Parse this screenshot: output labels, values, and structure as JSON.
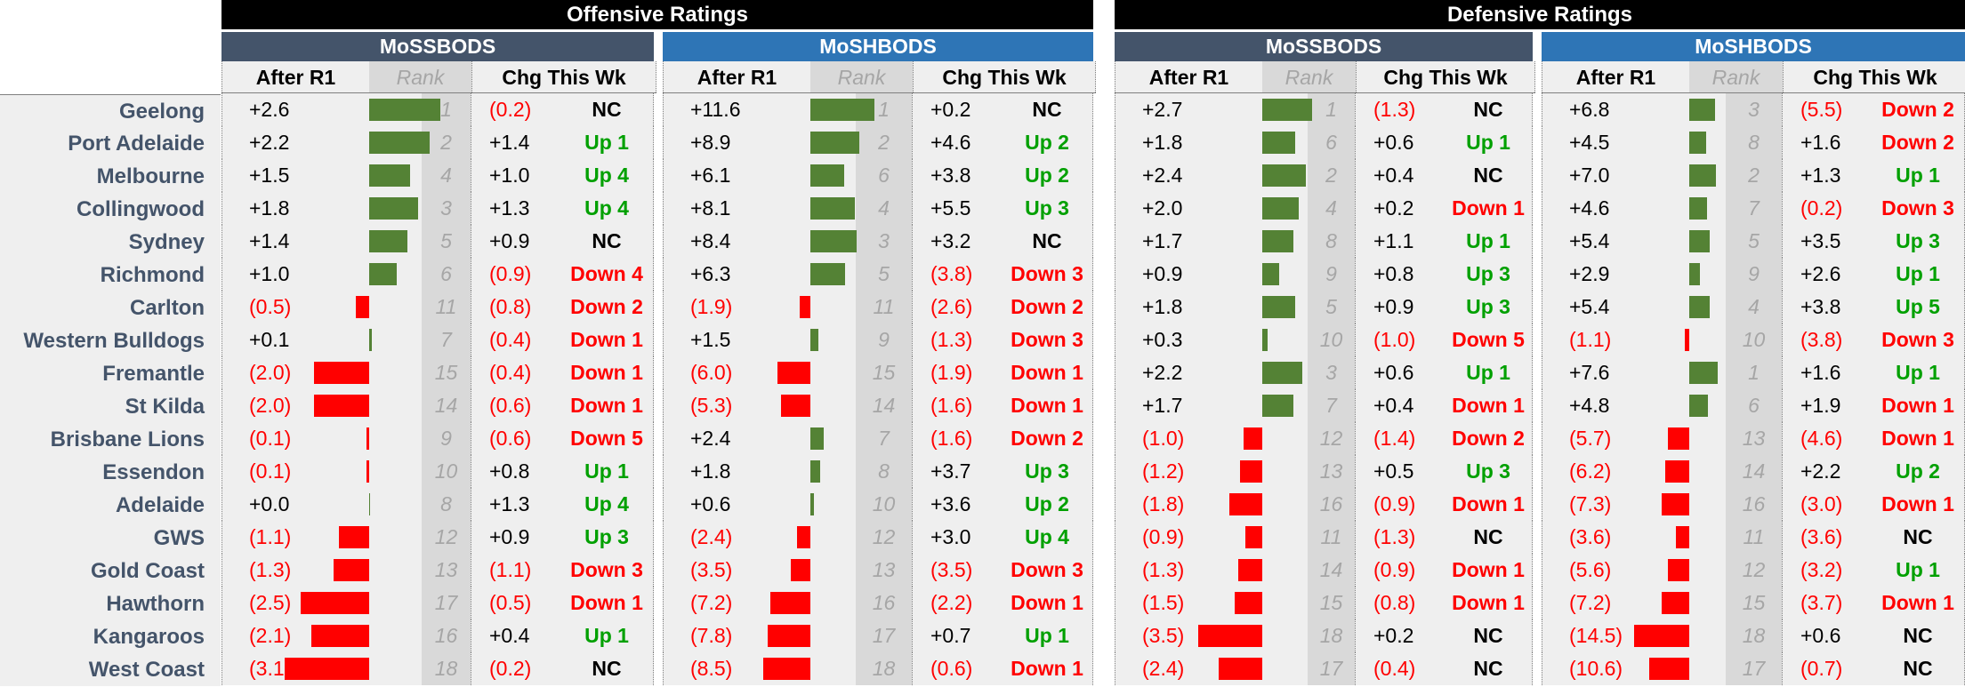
{
  "groups": [
    {
      "title": "Offensive Ratings"
    },
    {
      "title": "Defensive Ratings"
    }
  ],
  "subheaders": {
    "mossbods": "MoSSBODS",
    "moshbods": "MoSHBODS"
  },
  "columns": {
    "after": "After R1",
    "rank": "Rank",
    "chg": "Chg This Wk"
  },
  "teams": [
    "Geelong",
    "Port Adelaide",
    "Melbourne",
    "Collingwood",
    "Sydney",
    "Richmond",
    "Carlton",
    "Western Bulldogs",
    "Fremantle",
    "St Kilda",
    "Brisbane Lions",
    "Essendon",
    "Adelaide",
    "GWS",
    "Gold Coast",
    "Hawthorn",
    "Kangaroos",
    "West Coast"
  ],
  "panels": [
    {
      "name": "off-mossbods",
      "scale": 2.6,
      "rows": [
        {
          "v": "+2.6",
          "n": 2.6,
          "rank": "1",
          "c": "(0.2)",
          "t": "NC"
        },
        {
          "v": "+2.2",
          "n": 2.2,
          "rank": "2",
          "c": "+1.4",
          "t": "Up 1"
        },
        {
          "v": "+1.5",
          "n": 1.5,
          "rank": "4",
          "c": "+1.0",
          "t": "Up 4"
        },
        {
          "v": "+1.8",
          "n": 1.8,
          "rank": "3",
          "c": "+1.3",
          "t": "Up 4"
        },
        {
          "v": "+1.4",
          "n": 1.4,
          "rank": "5",
          "c": "+0.9",
          "t": "NC"
        },
        {
          "v": "+1.0",
          "n": 1.0,
          "rank": "6",
          "c": "(0.9)",
          "t": "Down 4"
        },
        {
          "v": "(0.5)",
          "n": -0.5,
          "rank": "11",
          "c": "(0.8)",
          "t": "Down 2"
        },
        {
          "v": "+0.1",
          "n": 0.1,
          "rank": "7",
          "c": "(0.4)",
          "t": "Down 1"
        },
        {
          "v": "(2.0)",
          "n": -2.0,
          "rank": "15",
          "c": "(0.4)",
          "t": "Down 1"
        },
        {
          "v": "(2.0)",
          "n": -2.0,
          "rank": "14",
          "c": "(0.6)",
          "t": "Down 1"
        },
        {
          "v": "(0.1)",
          "n": -0.1,
          "rank": "9",
          "c": "(0.6)",
          "t": "Down 5"
        },
        {
          "v": "(0.1)",
          "n": -0.1,
          "rank": "10",
          "c": "+0.8",
          "t": "Up 1"
        },
        {
          "v": "+0.0",
          "n": 0.0,
          "rank": "8",
          "c": "+1.3",
          "t": "Up 4"
        },
        {
          "v": "(1.1)",
          "n": -1.1,
          "rank": "12",
          "c": "+0.9",
          "t": "Up 3"
        },
        {
          "v": "(1.3)",
          "n": -1.3,
          "rank": "13",
          "c": "(1.1)",
          "t": "Down 3"
        },
        {
          "v": "(2.5)",
          "n": -2.5,
          "rank": "17",
          "c": "(0.5)",
          "t": "Down 1"
        },
        {
          "v": "(2.1)",
          "n": -2.1,
          "rank": "16",
          "c": "+0.4",
          "t": "Up 1"
        },
        {
          "v": "(3.1)",
          "n": -3.1,
          "rank": "18",
          "c": "(0.2)",
          "t": "NC"
        }
      ]
    },
    {
      "name": "off-moshbods",
      "scale": 11.6,
      "rows": [
        {
          "v": "+11.6",
          "n": 11.6,
          "rank": "1",
          "c": "+0.2",
          "t": "NC"
        },
        {
          "v": "+8.9",
          "n": 8.9,
          "rank": "2",
          "c": "+4.6",
          "t": "Up 2"
        },
        {
          "v": "+6.1",
          "n": 6.1,
          "rank": "6",
          "c": "+3.8",
          "t": "Up 2"
        },
        {
          "v": "+8.1",
          "n": 8.1,
          "rank": "4",
          "c": "+5.5",
          "t": "Up 3"
        },
        {
          "v": "+8.4",
          "n": 8.4,
          "rank": "3",
          "c": "+3.2",
          "t": "NC"
        },
        {
          "v": "+6.3",
          "n": 6.3,
          "rank": "5",
          "c": "(3.8)",
          "t": "Down 3"
        },
        {
          "v": "(1.9)",
          "n": -1.9,
          "rank": "11",
          "c": "(2.6)",
          "t": "Down 2"
        },
        {
          "v": "+1.5",
          "n": 1.5,
          "rank": "9",
          "c": "(1.3)",
          "t": "Down 3"
        },
        {
          "v": "(6.0)",
          "n": -6.0,
          "rank": "15",
          "c": "(1.9)",
          "t": "Down 1"
        },
        {
          "v": "(5.3)",
          "n": -5.3,
          "rank": "14",
          "c": "(1.6)",
          "t": "Down 1"
        },
        {
          "v": "+2.4",
          "n": 2.4,
          "rank": "7",
          "c": "(1.6)",
          "t": "Down 2"
        },
        {
          "v": "+1.8",
          "n": 1.8,
          "rank": "8",
          "c": "+3.7",
          "t": "Up 3"
        },
        {
          "v": "+0.6",
          "n": 0.6,
          "rank": "10",
          "c": "+3.6",
          "t": "Up 2"
        },
        {
          "v": "(2.4)",
          "n": -2.4,
          "rank": "12",
          "c": "+3.0",
          "t": "Up 4"
        },
        {
          "v": "(3.5)",
          "n": -3.5,
          "rank": "13",
          "c": "(3.5)",
          "t": "Down 3"
        },
        {
          "v": "(7.2)",
          "n": -7.2,
          "rank": "16",
          "c": "(2.2)",
          "t": "Down 1"
        },
        {
          "v": "(7.8)",
          "n": -7.8,
          "rank": "17",
          "c": "+0.7",
          "t": "Up 1"
        },
        {
          "v": "(8.5)",
          "n": -8.5,
          "rank": "18",
          "c": "(0.6)",
          "t": "Down 1"
        }
      ]
    },
    {
      "name": "def-mossbods",
      "scale": 3.5,
      "rows": [
        {
          "v": "+2.7",
          "n": 2.7,
          "rank": "1",
          "c": "(1.3)",
          "t": "NC"
        },
        {
          "v": "+1.8",
          "n": 1.8,
          "rank": "6",
          "c": "+0.6",
          "t": "Up 1"
        },
        {
          "v": "+2.4",
          "n": 2.4,
          "rank": "2",
          "c": "+0.4",
          "t": "NC"
        },
        {
          "v": "+2.0",
          "n": 2.0,
          "rank": "4",
          "c": "+0.2",
          "t": "Down 1"
        },
        {
          "v": "+1.7",
          "n": 1.7,
          "rank": "8",
          "c": "+1.1",
          "t": "Up 1"
        },
        {
          "v": "+0.9",
          "n": 0.9,
          "rank": "9",
          "c": "+0.8",
          "t": "Up 3"
        },
        {
          "v": "+1.8",
          "n": 1.8,
          "rank": "5",
          "c": "+0.9",
          "t": "Up 3"
        },
        {
          "v": "+0.3",
          "n": 0.3,
          "rank": "10",
          "c": "(1.0)",
          "t": "Down 5"
        },
        {
          "v": "+2.2",
          "n": 2.2,
          "rank": "3",
          "c": "+0.6",
          "t": "Up 1"
        },
        {
          "v": "+1.7",
          "n": 1.7,
          "rank": "7",
          "c": "+0.4",
          "t": "Down 1"
        },
        {
          "v": "(1.0)",
          "n": -1.0,
          "rank": "12",
          "c": "(1.4)",
          "t": "Down 2"
        },
        {
          "v": "(1.2)",
          "n": -1.2,
          "rank": "13",
          "c": "+0.5",
          "t": "Up 3"
        },
        {
          "v": "(1.8)",
          "n": -1.8,
          "rank": "16",
          "c": "(0.9)",
          "t": "Down 1"
        },
        {
          "v": "(0.9)",
          "n": -0.9,
          "rank": "11",
          "c": "(1.3)",
          "t": "NC"
        },
        {
          "v": "(1.3)",
          "n": -1.3,
          "rank": "14",
          "c": "(0.9)",
          "t": "Down 1"
        },
        {
          "v": "(1.5)",
          "n": -1.5,
          "rank": "15",
          "c": "(0.8)",
          "t": "Down 1"
        },
        {
          "v": "(3.5)",
          "n": -3.5,
          "rank": "18",
          "c": "+0.2",
          "t": "NC"
        },
        {
          "v": "(2.4)",
          "n": -2.4,
          "rank": "17",
          "c": "(0.4)",
          "t": "NC"
        }
      ]
    },
    {
      "name": "def-moshbods",
      "scale": 14.5,
      "rows": [
        {
          "v": "+6.8",
          "n": 6.8,
          "rank": "3",
          "c": "(5.5)",
          "t": "Down 2"
        },
        {
          "v": "+4.5",
          "n": 4.5,
          "rank": "8",
          "c": "+1.6",
          "t": "Down 2"
        },
        {
          "v": "+7.0",
          "n": 7.0,
          "rank": "2",
          "c": "+1.3",
          "t": "Up 1"
        },
        {
          "v": "+4.6",
          "n": 4.6,
          "rank": "7",
          "c": "(0.2)",
          "t": "Down 3"
        },
        {
          "v": "+5.4",
          "n": 5.4,
          "rank": "5",
          "c": "+3.5",
          "t": "Up 3"
        },
        {
          "v": "+2.9",
          "n": 2.9,
          "rank": "9",
          "c": "+2.6",
          "t": "Up 1"
        },
        {
          "v": "+5.4",
          "n": 5.4,
          "rank": "4",
          "c": "+3.8",
          "t": "Up 5"
        },
        {
          "v": "(1.1)",
          "n": -1.1,
          "rank": "10",
          "c": "(3.8)",
          "t": "Down 3"
        },
        {
          "v": "+7.6",
          "n": 7.6,
          "rank": "1",
          "c": "+1.6",
          "t": "Up 1"
        },
        {
          "v": "+4.8",
          "n": 4.8,
          "rank": "6",
          "c": "+1.9",
          "t": "Down 1"
        },
        {
          "v": "(5.7)",
          "n": -5.7,
          "rank": "13",
          "c": "(4.6)",
          "t": "Down 1"
        },
        {
          "v": "(6.2)",
          "n": -6.2,
          "rank": "14",
          "c": "+2.2",
          "t": "Up 2"
        },
        {
          "v": "(7.3)",
          "n": -7.3,
          "rank": "16",
          "c": "(3.0)",
          "t": "Down 1"
        },
        {
          "v": "(3.6)",
          "n": -3.6,
          "rank": "11",
          "c": "(3.6)",
          "t": "NC"
        },
        {
          "v": "(5.6)",
          "n": -5.6,
          "rank": "12",
          "c": "(3.2)",
          "t": "Up 1"
        },
        {
          "v": "(7.2)",
          "n": -7.2,
          "rank": "15",
          "c": "(3.7)",
          "t": "Down 1"
        },
        {
          "v": "(14.5)",
          "n": -14.5,
          "rank": "18",
          "c": "+0.6",
          "t": "NC"
        },
        {
          "v": "(10.6)",
          "n": -10.6,
          "rank": "17",
          "c": "(0.7)",
          "t": "NC"
        }
      ]
    }
  ]
}
